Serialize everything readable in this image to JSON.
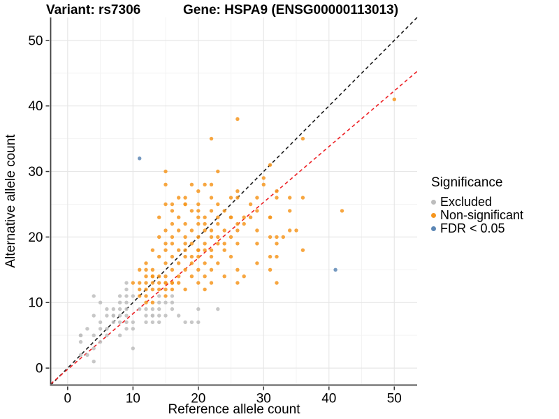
{
  "titles": {
    "variant": "Variant: rs7306",
    "gene": "Gene: HSPA9 (ENSG00000113013)"
  },
  "chart_data": {
    "type": "scatter",
    "xlabel": "Reference allele count",
    "ylabel": "Alternative allele count",
    "xlim": [
      -2.6,
      53.5
    ],
    "ylim": [
      -2.6,
      53.5
    ],
    "x_ticks": [
      0,
      10,
      20,
      30,
      40,
      50
    ],
    "y_ticks": [
      0,
      10,
      20,
      30,
      40,
      50
    ],
    "minor_gridlines": [
      5,
      15,
      25,
      35,
      45
    ],
    "grid": "on",
    "colors": {
      "excluded": "#bdbdbd",
      "non_significant": "#f6961e",
      "fdr": "#5d87b5",
      "identity_line": "#1a1a1a",
      "fit_line": "#ed2024",
      "grid_major": "#e7e7e7",
      "grid_minor": "#f3f3f3",
      "axis_line_left": "#404040",
      "axis_line_bottom": "#7a7a7a"
    },
    "legend": {
      "title": "Significance",
      "position": "right"
    },
    "reference_lines": [
      {
        "name": "identity",
        "slope": 1,
        "intercept": 0,
        "style": "dashed",
        "color": "#1a1a1a"
      },
      {
        "name": "fit",
        "slope": 0.85,
        "intercept": -0.2,
        "style": "dashed",
        "color": "#ed2024"
      }
    ],
    "series": [
      {
        "name": "Excluded",
        "color": "#bdbdbd",
        "points": [
          [
            9,
            13
          ],
          [
            9,
            12
          ],
          [
            4,
            11
          ],
          [
            8,
            11
          ],
          [
            9,
            11
          ],
          [
            10,
            11
          ],
          [
            14,
            11
          ],
          [
            16,
            11
          ],
          [
            5,
            10
          ],
          [
            8,
            10
          ],
          [
            9,
            10
          ],
          [
            14,
            10
          ],
          [
            15,
            10
          ],
          [
            16,
            10
          ],
          [
            6,
            9
          ],
          [
            7,
            9
          ],
          [
            8,
            9
          ],
          [
            9,
            9
          ],
          [
            11,
            9
          ],
          [
            12,
            9
          ],
          [
            13,
            9
          ],
          [
            14,
            9
          ],
          [
            16,
            9
          ],
          [
            20,
            9
          ],
          [
            23,
            9
          ],
          [
            4,
            8
          ],
          [
            6,
            8
          ],
          [
            7,
            8
          ],
          [
            7,
            8
          ],
          [
            8,
            8
          ],
          [
            9,
            8
          ],
          [
            12,
            8
          ],
          [
            13,
            8
          ],
          [
            13,
            8
          ],
          [
            14,
            8
          ],
          [
            15,
            8
          ],
          [
            17,
            8
          ],
          [
            5,
            7
          ],
          [
            7,
            7
          ],
          [
            8,
            7
          ],
          [
            9,
            7
          ],
          [
            10,
            7
          ],
          [
            12,
            7
          ],
          [
            13,
            7
          ],
          [
            14,
            7
          ],
          [
            18,
            7
          ],
          [
            19,
            7
          ],
          [
            20,
            7
          ],
          [
            3,
            6
          ],
          [
            5,
            6
          ],
          [
            6,
            6
          ],
          [
            9,
            6
          ],
          [
            10,
            6
          ],
          [
            2,
            5
          ],
          [
            2,
            5
          ],
          [
            4,
            5
          ],
          [
            6,
            5
          ],
          [
            8,
            5
          ],
          [
            2,
            4
          ],
          [
            5,
            4
          ],
          [
            4,
            3
          ],
          [
            10,
            3
          ],
          [
            2,
            2
          ],
          [
            3,
            2
          ],
          [
            4,
            1
          ]
        ]
      },
      {
        "name": "Non-significant",
        "color": "#f6961e",
        "points": [
          [
            50,
            41
          ],
          [
            26,
            38
          ],
          [
            36,
            35
          ],
          [
            22,
            35
          ],
          [
            31,
            31
          ],
          [
            15,
            30
          ],
          [
            23,
            30
          ],
          [
            30,
            29
          ],
          [
            15,
            28
          ],
          [
            19,
            28
          ],
          [
            21,
            28
          ],
          [
            22,
            28
          ],
          [
            30,
            28
          ],
          [
            20,
            27
          ],
          [
            26,
            27
          ],
          [
            32,
            27
          ],
          [
            17,
            26
          ],
          [
            18,
            26
          ],
          [
            22,
            26
          ],
          [
            25,
            26
          ],
          [
            26,
            26
          ],
          [
            29,
            26
          ],
          [
            32,
            26
          ],
          [
            34,
            26
          ],
          [
            36,
            26
          ],
          [
            15,
            25
          ],
          [
            16,
            25
          ],
          [
            18,
            25
          ],
          [
            18,
            25
          ],
          [
            20,
            25
          ],
          [
            23,
            25
          ],
          [
            28,
            25
          ],
          [
            16,
            24
          ],
          [
            19,
            24
          ],
          [
            20,
            24
          ],
          [
            22,
            24
          ],
          [
            24,
            24
          ],
          [
            29,
            24
          ],
          [
            34,
            24
          ],
          [
            42,
            24
          ],
          [
            14,
            23
          ],
          [
            17,
            23
          ],
          [
            20,
            23
          ],
          [
            21,
            23
          ],
          [
            23,
            23
          ],
          [
            25,
            23
          ],
          [
            25,
            23
          ],
          [
            27,
            23
          ],
          [
            28,
            23
          ],
          [
            31,
            23
          ],
          [
            31,
            23
          ],
          [
            16,
            22
          ],
          [
            18,
            22
          ],
          [
            20,
            22
          ],
          [
            21,
            22
          ],
          [
            23,
            22
          ],
          [
            26,
            22
          ],
          [
            27,
            22
          ],
          [
            15,
            21
          ],
          [
            17,
            21
          ],
          [
            19,
            21
          ],
          [
            21,
            21
          ],
          [
            22,
            21
          ],
          [
            24,
            21
          ],
          [
            26,
            21
          ],
          [
            29,
            21
          ],
          [
            34,
            21
          ],
          [
            35,
            21
          ],
          [
            14,
            20
          ],
          [
            16,
            20
          ],
          [
            18,
            20
          ],
          [
            20,
            20
          ],
          [
            22,
            20
          ],
          [
            23,
            20
          ],
          [
            25,
            20
          ],
          [
            31,
            20
          ],
          [
            32,
            20
          ],
          [
            33,
            20
          ],
          [
            15,
            19
          ],
          [
            16,
            19
          ],
          [
            18,
            19
          ],
          [
            19,
            19
          ],
          [
            21,
            19
          ],
          [
            23,
            19
          ],
          [
            24,
            19
          ],
          [
            26,
            19
          ],
          [
            29,
            19
          ],
          [
            32,
            19
          ],
          [
            13,
            18
          ],
          [
            15,
            18
          ],
          [
            17,
            18
          ],
          [
            18,
            18
          ],
          [
            20,
            18
          ],
          [
            20,
            18
          ],
          [
            21,
            18
          ],
          [
            22,
            18
          ],
          [
            24,
            18
          ],
          [
            36,
            18
          ],
          [
            14,
            17
          ],
          [
            16,
            17
          ],
          [
            18,
            17
          ],
          [
            19,
            17
          ],
          [
            20,
            17
          ],
          [
            22,
            17
          ],
          [
            25,
            17
          ],
          [
            31,
            17
          ],
          [
            32,
            17
          ],
          [
            12,
            16
          ],
          [
            15,
            16
          ],
          [
            17,
            16
          ],
          [
            19,
            16
          ],
          [
            21,
            16
          ],
          [
            23,
            16
          ],
          [
            29,
            16
          ],
          [
            11,
            15
          ],
          [
            12,
            15
          ],
          [
            13,
            15
          ],
          [
            16,
            15
          ],
          [
            18,
            15
          ],
          [
            20,
            15
          ],
          [
            22,
            15
          ],
          [
            26,
            15
          ],
          [
            31,
            15
          ],
          [
            12,
            14
          ],
          [
            13,
            14
          ],
          [
            13,
            14
          ],
          [
            14,
            14
          ],
          [
            15,
            14
          ],
          [
            17,
            14
          ],
          [
            19,
            14
          ],
          [
            21,
            14
          ],
          [
            24,
            14
          ],
          [
            27,
            14
          ],
          [
            10,
            13
          ],
          [
            11,
            13
          ],
          [
            12,
            13
          ],
          [
            13,
            13
          ],
          [
            14,
            13
          ],
          [
            15,
            13
          ],
          [
            15,
            13
          ],
          [
            16,
            13
          ],
          [
            16,
            13
          ],
          [
            17,
            13
          ],
          [
            20,
            13
          ],
          [
            22,
            13
          ],
          [
            26,
            13
          ],
          [
            32,
            13
          ],
          [
            11,
            12
          ],
          [
            12,
            12
          ],
          [
            13,
            12
          ],
          [
            14,
            12
          ],
          [
            15,
            12
          ],
          [
            16,
            12
          ],
          [
            18,
            12
          ],
          [
            21,
            12
          ],
          [
            11,
            11
          ],
          [
            12,
            11
          ],
          [
            15,
            11
          ],
          [
            12,
            10
          ],
          [
            13,
            10
          ]
        ]
      },
      {
        "name": "FDR < 0.05",
        "color": "#5d87b5",
        "points": [
          [
            11,
            32
          ],
          [
            41,
            15
          ]
        ]
      }
    ]
  }
}
